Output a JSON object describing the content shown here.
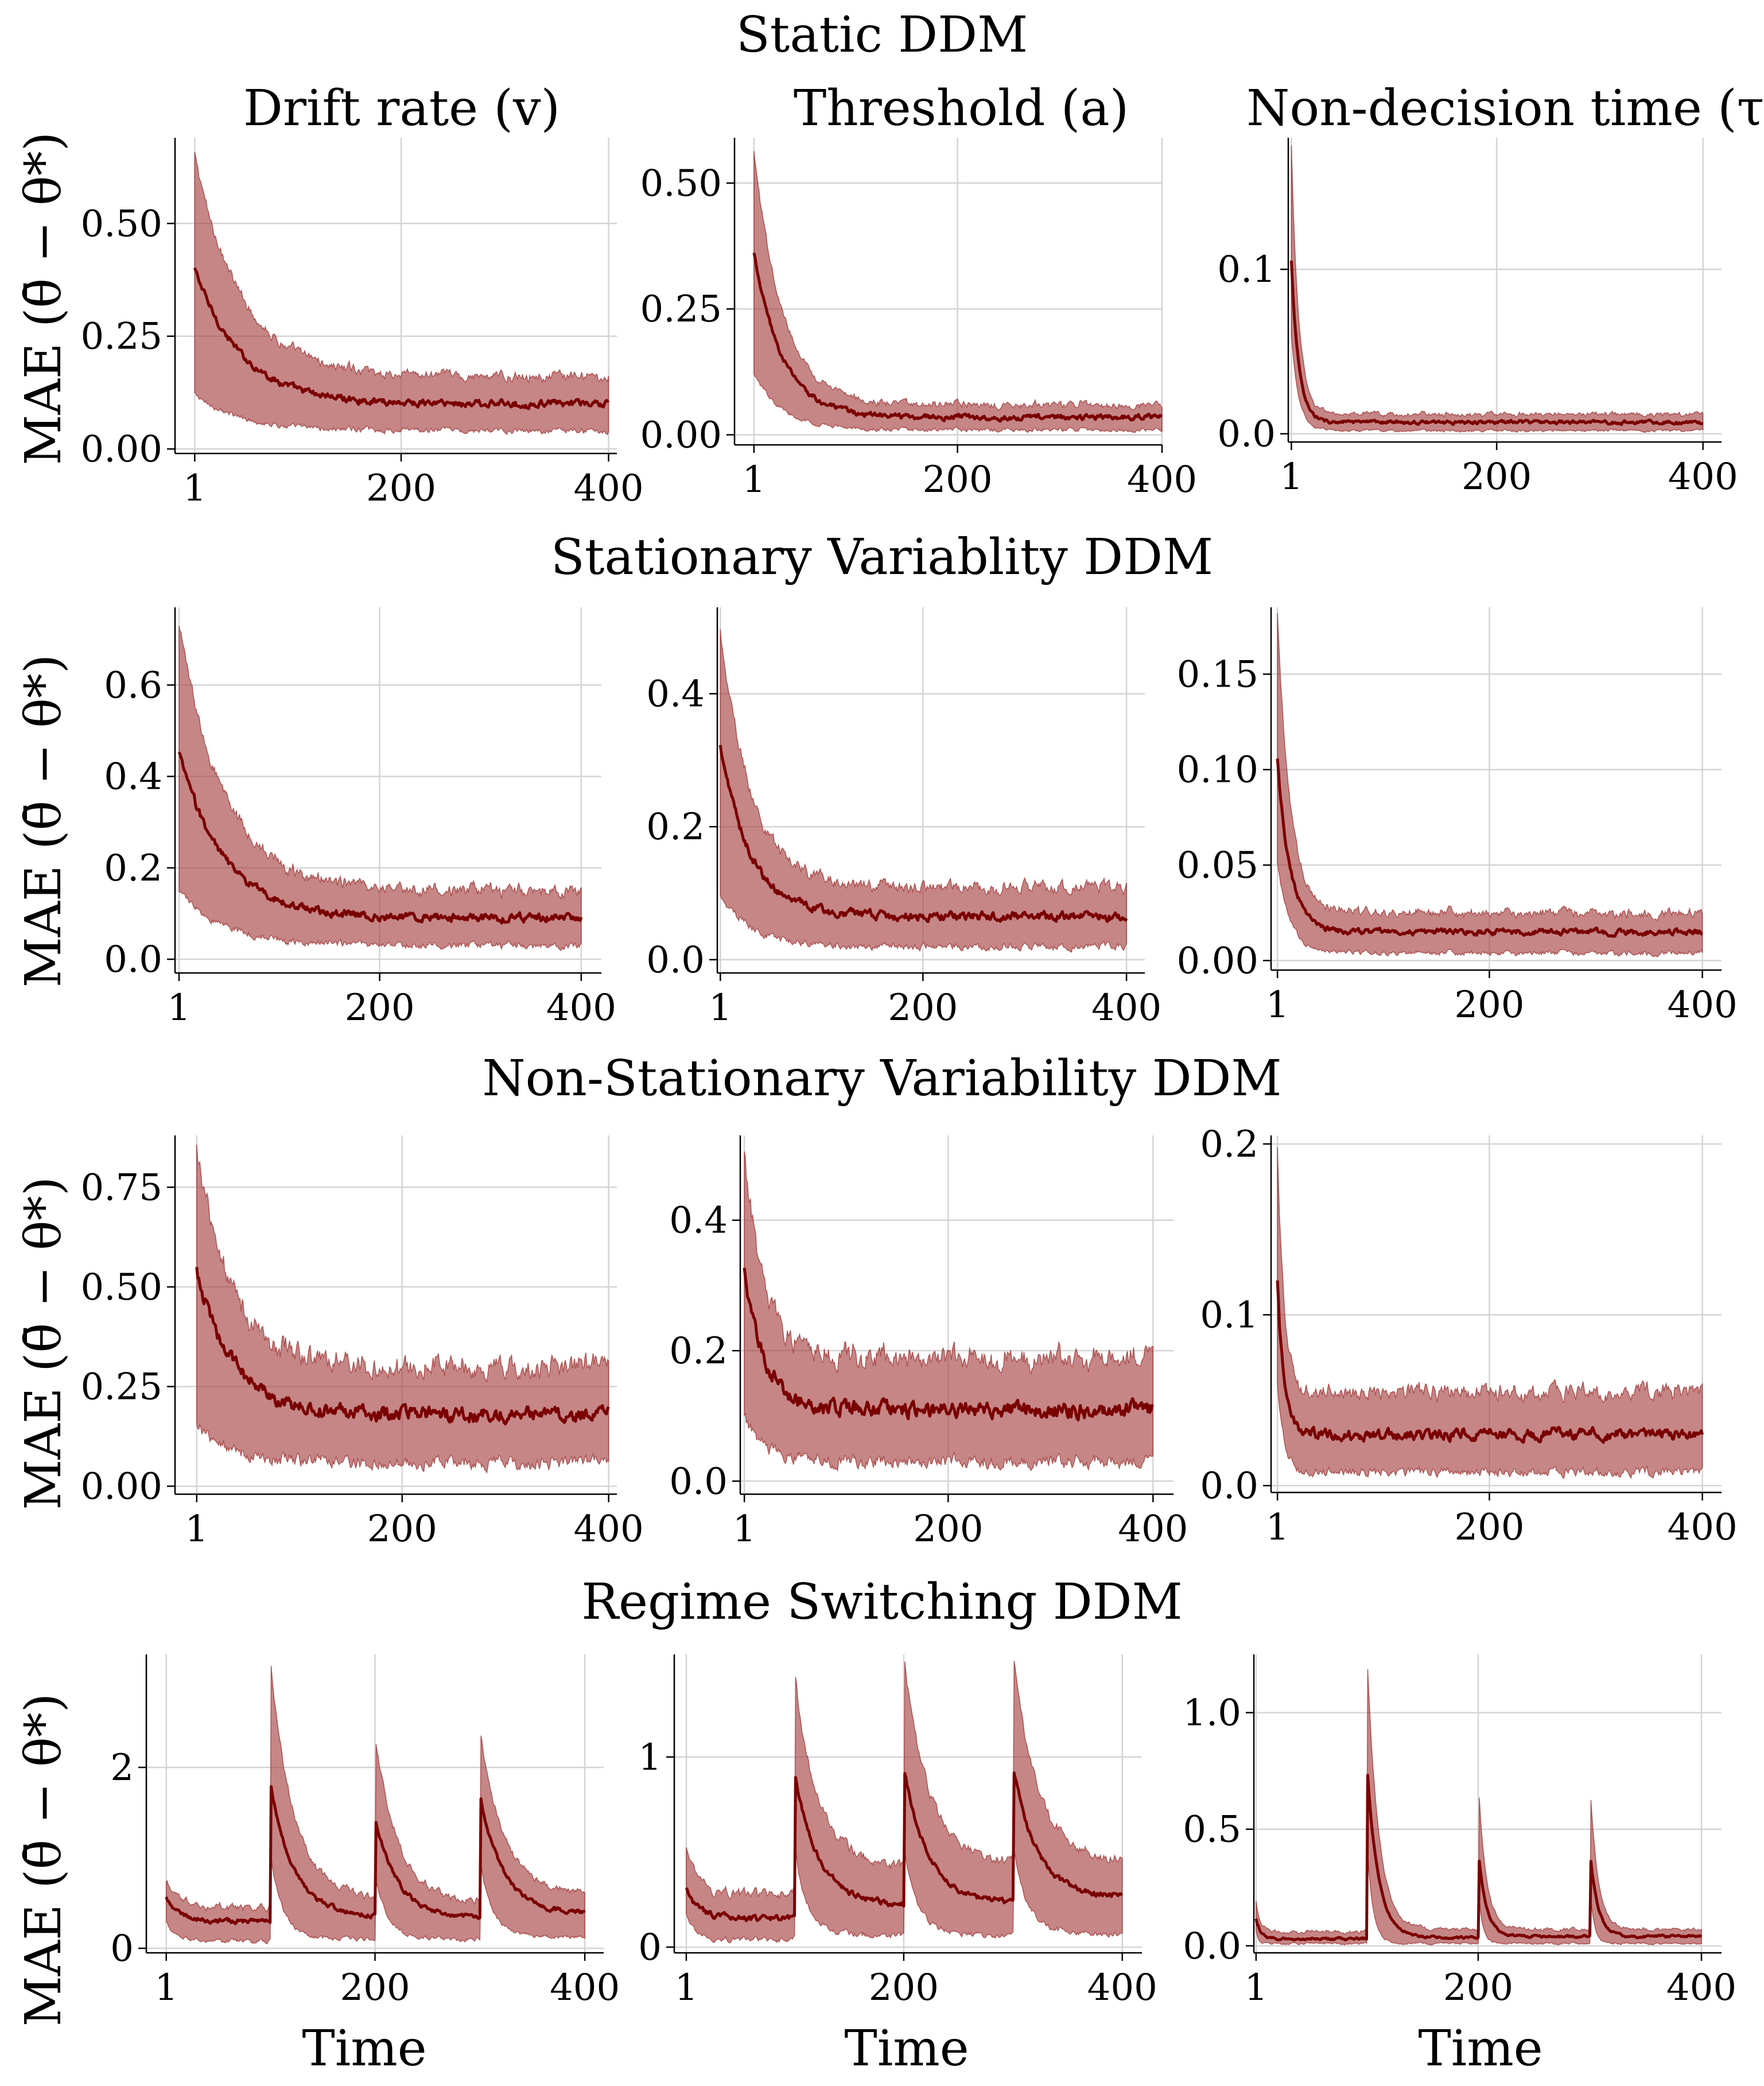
{
  "figure": {
    "row_titles": [
      "Static DDM",
      "Stationary Variablity DDM",
      "Non-Stationary Variability DDM",
      "Regime Switching DDM"
    ],
    "column_titles": [
      "Drift rate (v)",
      "Threshold (a)",
      "Non-decision time (τ)"
    ],
    "ylabel": "MAE (θ̄ − θ*)",
    "xlabel": "Time",
    "colors": {
      "band": "#a33b3b",
      "line": "#7a0000",
      "grid": "#d4d4d4",
      "axis": "#000000"
    }
  },
  "chart_data": [
    {
      "type": "area",
      "row": 0,
      "col": 0,
      "model": "Static DDM",
      "parameter": "Drift rate (v)",
      "pattern": "decay",
      "ylim": [
        -0.01,
        0.69
      ],
      "xlim": [
        -18,
        408
      ],
      "yticks": [
        0,
        0.25,
        0.5
      ],
      "ytick_labels": [
        "0.00",
        "0.25",
        "0.50"
      ],
      "xticks": [
        1,
        200,
        400
      ],
      "xtick_labels": [
        "1",
        "200",
        "400"
      ],
      "start_mean": 0.4,
      "final_mean": 0.1,
      "decay_tau": 45,
      "start_lower": 0.12,
      "final_lower": 0.04,
      "start_upper": 0.65,
      "final_upper": 0.16,
      "noise_mean": 0.006,
      "noise_band": 0.008,
      "grid": true
    },
    {
      "type": "area",
      "row": 0,
      "col": 1,
      "model": "Static DDM",
      "parameter": "Threshold (a)",
      "pattern": "decay",
      "ylim": [
        -0.02,
        0.59
      ],
      "xlim": [
        -18,
        400
      ],
      "yticks": [
        0,
        0.25,
        0.5
      ],
      "ytick_labels": [
        "0.00",
        "0.25",
        "0.50"
      ],
      "xticks": [
        1,
        200,
        400
      ],
      "xtick_labels": [
        "1",
        "200",
        "400"
      ],
      "start_mean": 0.36,
      "final_mean": 0.035,
      "decay_tau": 28,
      "start_lower": 0.12,
      "final_lower": 0.01,
      "start_upper": 0.56,
      "final_upper": 0.06,
      "noise_mean": 0.004,
      "noise_band": 0.005,
      "grid": true
    },
    {
      "type": "area",
      "row": 0,
      "col": 2,
      "model": "Static DDM",
      "parameter": "Non-decision time (τ)",
      "pattern": "decay",
      "ylim": [
        -0.005,
        0.18
      ],
      "xlim": [
        -2,
        418
      ],
      "yticks": [
        0,
        0.1
      ],
      "ytick_labels": [
        "0.0",
        "0.1"
      ],
      "xticks": [
        1,
        200,
        400
      ],
      "xtick_labels": [
        "1",
        "200",
        "400"
      ],
      "start_mean": 0.105,
      "final_mean": 0.007,
      "decay_tau": 7,
      "start_lower": 0.06,
      "final_lower": 0.002,
      "start_upper": 0.175,
      "final_upper": 0.012,
      "noise_mean": 0.0008,
      "noise_band": 0.001,
      "grid": true
    },
    {
      "type": "area",
      "row": 1,
      "col": 0,
      "model": "Stationary Variablity DDM",
      "parameter": "Drift rate (v)",
      "pattern": "decay",
      "ylim": [
        -0.03,
        0.77
      ],
      "xlim": [
        -3,
        420
      ],
      "yticks": [
        0,
        0.2,
        0.4,
        0.6
      ],
      "ytick_labels": [
        "0.0",
        "0.2",
        "0.4",
        "0.6"
      ],
      "xticks": [
        1,
        200,
        400
      ],
      "xtick_labels": [
        "1",
        "200",
        "400"
      ],
      "start_mean": 0.45,
      "final_mean": 0.09,
      "decay_tau": 45,
      "start_lower": 0.15,
      "final_lower": 0.03,
      "start_upper": 0.73,
      "final_upper": 0.15,
      "noise_mean": 0.007,
      "noise_band": 0.01,
      "grid": true
    },
    {
      "type": "area",
      "row": 1,
      "col": 1,
      "model": "Stationary Variablity DDM",
      "parameter": "Threshold (a)",
      "pattern": "decay",
      "ylim": [
        -0.02,
        0.53
      ],
      "xlim": [
        -2,
        418
      ],
      "yticks": [
        0,
        0.2,
        0.4
      ],
      "ytick_labels": [
        "0.0",
        "0.2",
        "0.4"
      ],
      "xticks": [
        1,
        200,
        400
      ],
      "xtick_labels": [
        "1",
        "200",
        "400"
      ],
      "start_mean": 0.32,
      "final_mean": 0.065,
      "decay_tau": 30,
      "start_lower": 0.1,
      "final_lower": 0.02,
      "start_upper": 0.5,
      "final_upper": 0.11,
      "noise_mean": 0.005,
      "noise_band": 0.007,
      "grid": true
    },
    {
      "type": "area",
      "row": 1,
      "col": 2,
      "model": "Stationary Variablity DDM",
      "parameter": "Non-decision time (τ)",
      "pattern": "decay",
      "ylim": [
        -0.005,
        0.185
      ],
      "xlim": [
        -5,
        418
      ],
      "yticks": [
        0,
        0.05,
        0.1,
        0.15
      ],
      "ytick_labels": [
        "0.00",
        "0.05",
        "0.10",
        "0.15"
      ],
      "xticks": [
        1,
        200,
        400
      ],
      "xtick_labels": [
        "1",
        "200",
        "400"
      ],
      "start_mean": 0.105,
      "final_mean": 0.015,
      "decay_tau": 12,
      "start_lower": 0.05,
      "final_lower": 0.004,
      "start_upper": 0.18,
      "final_upper": 0.025,
      "noise_mean": 0.0012,
      "noise_band": 0.0018,
      "grid": true
    },
    {
      "type": "area",
      "row": 2,
      "col": 0,
      "model": "Non-Stationary Variability DDM",
      "parameter": "Drift rate (v)",
      "pattern": "decay",
      "ylim": [
        -0.02,
        0.88
      ],
      "xlim": [
        -20,
        408
      ],
      "yticks": [
        0,
        0.25,
        0.5,
        0.75
      ],
      "ytick_labels": [
        "0.00",
        "0.25",
        "0.50",
        "0.75"
      ],
      "xticks": [
        1,
        200,
        400
      ],
      "xtick_labels": [
        "1",
        "200",
        "400"
      ],
      "start_mean": 0.54,
      "final_mean": 0.18,
      "decay_tau": 35,
      "start_lower": 0.15,
      "final_lower": 0.06,
      "start_upper": 0.84,
      "final_upper": 0.3,
      "noise_mean": 0.014,
      "noise_band": 0.022,
      "grid": true
    },
    {
      "type": "area",
      "row": 2,
      "col": 1,
      "model": "Non-Stationary Variability DDM",
      "parameter": "Threshold (a)",
      "pattern": "decay",
      "ylim": [
        -0.02,
        0.53
      ],
      "xlim": [
        -3,
        420
      ],
      "yticks": [
        0,
        0.2,
        0.4
      ],
      "ytick_labels": [
        "0.0",
        "0.2",
        "0.4"
      ],
      "xticks": [
        1,
        200,
        400
      ],
      "xtick_labels": [
        "1",
        "200",
        "400"
      ],
      "start_mean": 0.32,
      "final_mean": 0.11,
      "decay_tau": 20,
      "start_lower": 0.1,
      "final_lower": 0.03,
      "start_upper": 0.5,
      "final_upper": 0.19,
      "noise_mean": 0.009,
      "noise_band": 0.014,
      "grid": true
    },
    {
      "type": "area",
      "row": 2,
      "col": 2,
      "model": "Non-Stationary Variability DDM",
      "parameter": "Non-decision time (τ)",
      "pattern": "decay",
      "ylim": [
        -0.004,
        0.205
      ],
      "xlim": [
        -5,
        418
      ],
      "yticks": [
        0,
        0.1,
        0.2
      ],
      "ytick_labels": [
        "0.0",
        "0.1",
        "0.2"
      ],
      "xticks": [
        1,
        200,
        400
      ],
      "xtick_labels": [
        "1",
        "200",
        "400"
      ],
      "start_mean": 0.118,
      "final_mean": 0.03,
      "decay_tau": 6,
      "start_lower": 0.06,
      "final_lower": 0.008,
      "start_upper": 0.198,
      "final_upper": 0.055,
      "noise_mean": 0.0025,
      "noise_band": 0.0035,
      "grid": true
    },
    {
      "type": "area",
      "row": 3,
      "col": 0,
      "model": "Regime Switching DDM",
      "parameter": "Drift rate (v)",
      "pattern": "regime",
      "ylim": [
        -0.05,
        3.25
      ],
      "xlim": [
        -18,
        418
      ],
      "yticks": [
        0,
        2
      ],
      "ytick_labels": [
        "0",
        "2"
      ],
      "xticks": [
        1,
        200,
        400
      ],
      "xtick_labels": [
        "1",
        "200",
        "400"
      ],
      "switch_points": [
        1,
        101,
        201,
        301
      ],
      "peak_means": [
        0.55,
        1.8,
        1.4,
        1.65
      ],
      "peak_uppers": [
        0.75,
        3.1,
        2.3,
        2.35
      ],
      "baseline_mean": [
        0.3,
        0.35,
        0.33,
        0.38
      ],
      "baseline_lower": [
        0.08,
        0.1,
        0.1,
        0.12
      ],
      "baseline_upper": [
        0.45,
        0.55,
        0.5,
        0.6
      ],
      "decay_tau": [
        12,
        22,
        22,
        22
      ],
      "noise_mean": 0.02,
      "noise_band": 0.03,
      "grid": true
    },
    {
      "type": "area",
      "row": 3,
      "col": 1,
      "model": "Regime Switching DDM",
      "parameter": "Threshold (a)",
      "pattern": "regime",
      "ylim": [
        -0.03,
        1.54
      ],
      "xlim": [
        -10,
        418
      ],
      "yticks": [
        0,
        1
      ],
      "ytick_labels": [
        "0",
        "1"
      ],
      "xticks": [
        1,
        200,
        400
      ],
      "xtick_labels": [
        "1",
        "200",
        "400"
      ],
      "switch_points": [
        1,
        101,
        201,
        301
      ],
      "peak_means": [
        0.3,
        0.88,
        0.92,
        0.92
      ],
      "peak_uppers": [
        0.5,
        1.38,
        1.5,
        1.5
      ],
      "baseline_mean": [
        0.15,
        0.22,
        0.23,
        0.26
      ],
      "baseline_lower": [
        0.04,
        0.06,
        0.06,
        0.07
      ],
      "baseline_upper": [
        0.28,
        0.42,
        0.44,
        0.45
      ],
      "decay_tau": [
        12,
        22,
        22,
        22
      ],
      "noise_mean": 0.012,
      "noise_band": 0.02,
      "grid": true
    },
    {
      "type": "area",
      "row": 3,
      "col": 2,
      "model": "Regime Switching DDM",
      "parameter": "Non-decision time (τ)",
      "pattern": "regime",
      "ylim": [
        -0.03,
        1.25
      ],
      "xlim": [
        -1,
        418
      ],
      "yticks": [
        0,
        0.5,
        1
      ],
      "ytick_labels": [
        "0.0",
        "0.5",
        "1.0"
      ],
      "xticks": [
        1,
        200,
        400
      ],
      "xtick_labels": [
        "1",
        "200",
        "400"
      ],
      "switch_points": [
        1,
        101,
        201,
        301
      ],
      "peak_means": [
        0.12,
        0.73,
        0.36,
        0.36
      ],
      "peak_uppers": [
        0.19,
        1.19,
        0.63,
        0.62
      ],
      "baseline_mean": [
        0.03,
        0.035,
        0.04,
        0.04
      ],
      "baseline_lower": [
        0.01,
        0.01,
        0.01,
        0.01
      ],
      "baseline_upper": [
        0.06,
        0.07,
        0.07,
        0.07
      ],
      "decay_tau": [
        4,
        10,
        7,
        7
      ],
      "noise_mean": 0.004,
      "noise_band": 0.006,
      "grid": true
    }
  ]
}
